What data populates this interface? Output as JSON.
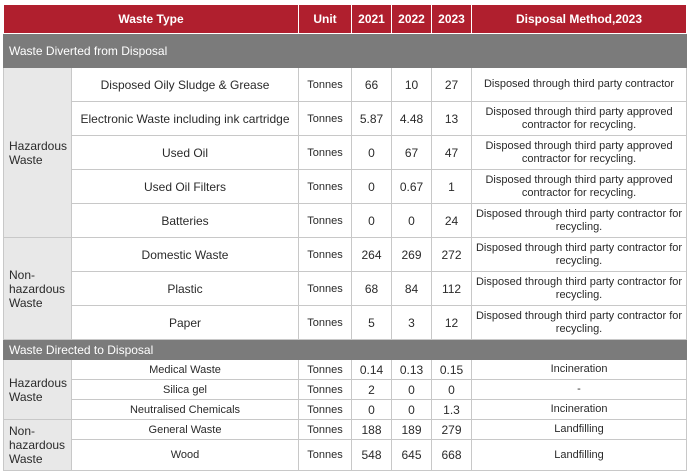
{
  "headers": {
    "waste_type": "Waste Type",
    "unit": "Unit",
    "y2021": "2021",
    "y2022": "2022",
    "y2023": "2023",
    "method": "Disposal Method,2023"
  },
  "sections": {
    "diverted": "Waste Diverted from Disposal",
    "directed": "Waste Directed to Disposal"
  },
  "categories": {
    "hazardous": "Hazardous Waste",
    "non_hazardous": "Non-hazardous Waste"
  },
  "diverted_rows": [
    {
      "type": "Disposed Oily Sludge & Grease",
      "unit": "Tonnes",
      "y2021": "66",
      "y2022": "10",
      "y2023": "27",
      "method": "Disposed through third party contractor"
    },
    {
      "type": "Electronic Waste including ink cartridge",
      "unit": "Tonnes",
      "y2021": "5.87",
      "y2022": "4.48",
      "y2023": "13",
      "method": "Disposed through third party approved contractor for recycling."
    },
    {
      "type": "Used Oil",
      "unit": "Tonnes",
      "y2021": "0",
      "y2022": "67",
      "y2023": "47",
      "method": "Disposed through third party approved contractor for recycling."
    },
    {
      "type": "Used Oil Filters",
      "unit": "Tonnes",
      "y2021": "0",
      "y2022": "0.67",
      "y2023": "1",
      "method": "Disposed through third party approved contractor for recycling."
    },
    {
      "type": "Batteries",
      "unit": "Tonnes",
      "y2021": "0",
      "y2022": "0",
      "y2023": "24",
      "method": "Disposed through third party contractor for recycling."
    },
    {
      "type": "Domestic Waste",
      "unit": "Tonnes",
      "y2021": "264",
      "y2022": "269",
      "y2023": "272",
      "method": "Disposed through third party contractor for recycling."
    },
    {
      "type": "Plastic",
      "unit": "Tonnes",
      "y2021": "68",
      "y2022": "84",
      "y2023": "112",
      "method": "Disposed through third party contractor for recycling."
    },
    {
      "type": "Paper",
      "unit": "Tonnes",
      "y2021": "5",
      "y2022": "3",
      "y2023": "12",
      "method": "Disposed through third party contractor for recycling."
    }
  ],
  "directed_rows": [
    {
      "type": "Medical Waste",
      "unit": "Tonnes",
      "y2021": "0.14",
      "y2022": "0.13",
      "y2023": "0.15",
      "method": "Incineration"
    },
    {
      "type": "Silica gel",
      "unit": "Tonnes",
      "y2021": "2",
      "y2022": "0",
      "y2023": "0",
      "method": "-"
    },
    {
      "type": "Neutralised Chemicals",
      "unit": "Tonnes",
      "y2021": "0",
      "y2022": "0",
      "y2023": "1.3",
      "method": "Incineration"
    },
    {
      "type": "General Waste",
      "unit": "Tonnes",
      "y2021": "188",
      "y2022": "189",
      "y2023": "279",
      "method": "Landfilling"
    },
    {
      "type": "Wood",
      "unit": "Tonnes",
      "y2021": "548",
      "y2022": "645",
      "y2023": "668",
      "method": "Landfilling"
    }
  ],
  "colors": {
    "header_red": "#b01f2e",
    "section_gray": "#7b7b7b",
    "category_gray": "#e8e8e8"
  }
}
